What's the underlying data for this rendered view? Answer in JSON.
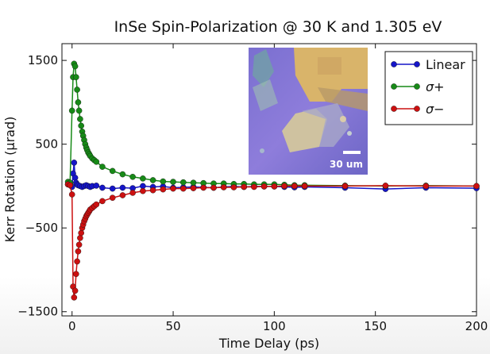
{
  "chart_data": {
    "type": "line",
    "title": "InSe Spin-Polarization @ 30 K and 1.305 eV",
    "xlabel": "Time Delay (ps)",
    "ylabel": "Kerr Rotation (μrad)",
    "xlim": [
      -5,
      200
    ],
    "ylim": [
      -1550,
      1700
    ],
    "xticks": [
      0,
      50,
      100,
      150,
      200
    ],
    "yticks": [
      1500,
      500,
      -500,
      -1500
    ],
    "ytick_labels": [
      "1500",
      "500",
      "−500",
      "−1500"
    ],
    "grid": false,
    "legend_position": "top-right",
    "series": [
      {
        "name": "Linear",
        "color": "#1515c8",
        "points": [
          [
            -2,
            20
          ],
          [
            -1,
            15
          ],
          [
            0,
            -10
          ],
          [
            0.5,
            150
          ],
          [
            1,
            280
          ],
          [
            1.5,
            100
          ],
          [
            2,
            40
          ],
          [
            2.5,
            20
          ],
          [
            3,
            10
          ],
          [
            4,
            0
          ],
          [
            5,
            -10
          ],
          [
            6,
            0
          ],
          [
            7,
            10
          ],
          [
            8,
            0
          ],
          [
            9,
            -10
          ],
          [
            10,
            0
          ],
          [
            12,
            5
          ],
          [
            15,
            -20
          ],
          [
            20,
            -30
          ],
          [
            25,
            -20
          ],
          [
            30,
            -25
          ],
          [
            35,
            0
          ],
          [
            40,
            -10
          ],
          [
            45,
            -5
          ],
          [
            50,
            -20
          ],
          [
            55,
            -15
          ],
          [
            60,
            -10
          ],
          [
            65,
            -15
          ],
          [
            70,
            -20
          ],
          [
            75,
            -10
          ],
          [
            80,
            -5
          ],
          [
            85,
            -10
          ],
          [
            90,
            -5
          ],
          [
            95,
            -5
          ],
          [
            100,
            -5
          ],
          [
            105,
            -10
          ],
          [
            110,
            -15
          ],
          [
            115,
            -10
          ],
          [
            135,
            -20
          ],
          [
            155,
            -35
          ],
          [
            175,
            -20
          ],
          [
            200,
            -25
          ]
        ]
      },
      {
        "name": "σ+",
        "color": "#178a17",
        "points": [
          [
            -2,
            50
          ],
          [
            -1,
            40
          ],
          [
            0,
            900
          ],
          [
            0.5,
            1300
          ],
          [
            1,
            1460
          ],
          [
            1.5,
            1430
          ],
          [
            2,
            1300
          ],
          [
            2.5,
            1150
          ],
          [
            3,
            1000
          ],
          [
            3.5,
            900
          ],
          [
            4,
            800
          ],
          [
            4.5,
            720
          ],
          [
            5,
            650
          ],
          [
            5.5,
            600
          ],
          [
            6,
            550
          ],
          [
            6.5,
            500
          ],
          [
            7,
            460
          ],
          [
            7.5,
            430
          ],
          [
            8,
            400
          ],
          [
            8.5,
            380
          ],
          [
            9,
            360
          ],
          [
            10,
            330
          ],
          [
            11,
            310
          ],
          [
            12,
            290
          ],
          [
            15,
            230
          ],
          [
            20,
            180
          ],
          [
            25,
            140
          ],
          [
            30,
            110
          ],
          [
            35,
            90
          ],
          [
            40,
            70
          ],
          [
            45,
            55
          ],
          [
            50,
            50
          ],
          [
            55,
            45
          ],
          [
            60,
            40
          ],
          [
            65,
            35
          ],
          [
            70,
            30
          ],
          [
            75,
            30
          ],
          [
            80,
            25
          ],
          [
            85,
            25
          ],
          [
            90,
            20
          ],
          [
            95,
            20
          ],
          [
            100,
            20
          ],
          [
            105,
            15
          ],
          [
            110,
            10
          ],
          [
            115,
            10
          ],
          [
            135,
            5
          ],
          [
            155,
            0
          ],
          [
            175,
            5
          ],
          [
            200,
            0
          ]
        ]
      },
      {
        "name": "σ−",
        "color": "#cc1010",
        "points": [
          [
            -2,
            20
          ],
          [
            -1,
            10
          ],
          [
            0,
            -100
          ],
          [
            0.5,
            -1200
          ],
          [
            1,
            -1330
          ],
          [
            1.5,
            -1250
          ],
          [
            2,
            -1050
          ],
          [
            2.5,
            -900
          ],
          [
            3,
            -780
          ],
          [
            3.5,
            -700
          ],
          [
            4,
            -620
          ],
          [
            4.5,
            -560
          ],
          [
            5,
            -500
          ],
          [
            5.5,
            -460
          ],
          [
            6,
            -420
          ],
          [
            6.5,
            -390
          ],
          [
            7,
            -360
          ],
          [
            7.5,
            -340
          ],
          [
            8,
            -320
          ],
          [
            8.5,
            -300
          ],
          [
            9,
            -280
          ],
          [
            10,
            -260
          ],
          [
            11,
            -240
          ],
          [
            12,
            -220
          ],
          [
            15,
            -180
          ],
          [
            20,
            -140
          ],
          [
            25,
            -110
          ],
          [
            30,
            -80
          ],
          [
            35,
            -60
          ],
          [
            40,
            -50
          ],
          [
            45,
            -40
          ],
          [
            50,
            -30
          ],
          [
            55,
            -30
          ],
          [
            60,
            -25
          ],
          [
            65,
            -20
          ],
          [
            70,
            -20
          ],
          [
            75,
            -15
          ],
          [
            80,
            -15
          ],
          [
            85,
            -10
          ],
          [
            90,
            -10
          ],
          [
            95,
            -5
          ],
          [
            100,
            -5
          ],
          [
            105,
            0
          ],
          [
            110,
            0
          ],
          [
            115,
            0
          ],
          [
            135,
            0
          ],
          [
            155,
            5
          ],
          [
            175,
            0
          ],
          [
            200,
            0
          ]
        ]
      }
    ],
    "inset": {
      "scale_bar_label": "30 um"
    }
  }
}
